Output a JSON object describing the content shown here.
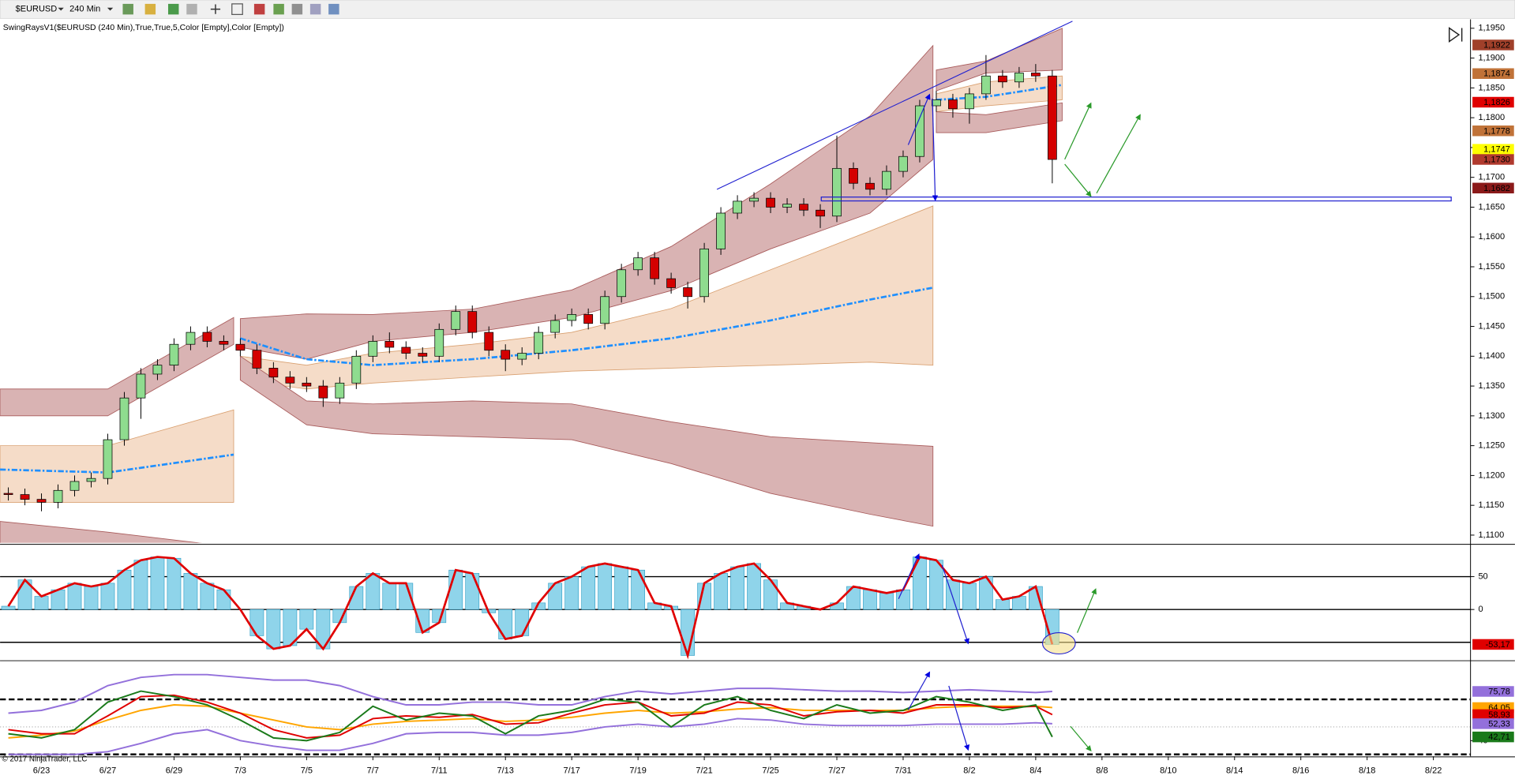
{
  "toolbar": {
    "instrument": "$EURUSD",
    "interval": "240 Min"
  },
  "copyright": "© 2017 NinjaTrader, LLC",
  "chart_data": [
    {
      "type": "candlestick",
      "title": "SwingRaysV1($EURUSD (240 Min),True,True,5,Color [Empty],Color [Empty])",
      "xlim": [
        -1.25,
        43.12
      ],
      "xticks": [
        {
          "value": 0,
          "label": "6/23"
        },
        {
          "value": 2,
          "label": "6/27"
        },
        {
          "value": 4,
          "label": "6/29"
        },
        {
          "value": 6,
          "label": "7/3"
        },
        {
          "value": 8,
          "label": "7/5"
        },
        {
          "value": 10,
          "label": "7/7"
        },
        {
          "value": 12,
          "label": "7/11"
        },
        {
          "value": 14,
          "label": "7/13"
        },
        {
          "value": 16,
          "label": "7/17"
        },
        {
          "value": 18,
          "label": "7/19"
        },
        {
          "value": 20,
          "label": "7/21"
        },
        {
          "value": 22,
          "label": "7/25"
        },
        {
          "value": 24,
          "label": "7/27"
        },
        {
          "value": 26,
          "label": "7/31"
        },
        {
          "value": 28,
          "label": "8/2"
        },
        {
          "value": 30,
          "label": "8/4"
        },
        {
          "value": 32,
          "label": "8/8"
        },
        {
          "value": 34,
          "label": "8/10"
        },
        {
          "value": 36,
          "label": "8/14"
        },
        {
          "value": 38,
          "label": "8/16"
        },
        {
          "value": 40,
          "label": "8/18"
        },
        {
          "value": 42,
          "label": "8/22"
        }
      ],
      "ylim": [
        1.1087,
        1.1965
      ],
      "yticks": [
        {
          "value": 1.195,
          "label": "1,1950"
        },
        {
          "value": 1.19,
          "label": "1,1900"
        },
        {
          "value": 1.185,
          "label": "1,1850"
        },
        {
          "value": 1.18,
          "label": "1,1800"
        },
        {
          "value": 1.175,
          "label": "1,1750"
        },
        {
          "value": 1.17,
          "label": "1,1700"
        },
        {
          "value": 1.165,
          "label": "1,1650"
        },
        {
          "value": 1.16,
          "label": "1,1600"
        },
        {
          "value": 1.155,
          "label": "1,1550"
        },
        {
          "value": 1.15,
          "label": "1,1500"
        },
        {
          "value": 1.145,
          "label": "1,1450"
        },
        {
          "value": 1.14,
          "label": "1,1400"
        },
        {
          "value": 1.135,
          "label": "1,1350"
        },
        {
          "value": 1.13,
          "label": "1,1300"
        },
        {
          "value": 1.125,
          "label": "1,1250"
        },
        {
          "value": 1.12,
          "label": "1,1200"
        },
        {
          "value": 1.115,
          "label": "1,1150"
        },
        {
          "value": 1.11,
          "label": "1,1100"
        }
      ],
      "up_color": "#8fdc8f",
      "down_color": "#d40000",
      "x": [
        -1,
        -0.5,
        0,
        0.5,
        1,
        1.5,
        2,
        2.5,
        3,
        3.5,
        4,
        4.5,
        5,
        5.5,
        6,
        6.5,
        7,
        7.5,
        8,
        8.5,
        9,
        9.5,
        10,
        10.5,
        11,
        11.5,
        12,
        12.5,
        13,
        13.5,
        14,
        14.5,
        15,
        15.5,
        16,
        16.5,
        17,
        17.5,
        18,
        18.5,
        19,
        19.5,
        20,
        20.5,
        21,
        21.5,
        22,
        22.5,
        23,
        23.5,
        24,
        24.5,
        25,
        25.5,
        26,
        26.5,
        27,
        27.5,
        28,
        28.5,
        29,
        29.5,
        30,
        30.5
      ],
      "open": [
        1.117,
        1.1168,
        1.116,
        1.1155,
        1.1175,
        1.119,
        1.1195,
        1.126,
        1.133,
        1.137,
        1.1385,
        1.142,
        1.144,
        1.1425,
        1.142,
        1.141,
        1.138,
        1.1365,
        1.1355,
        1.135,
        1.133,
        1.1355,
        1.14,
        1.1425,
        1.1415,
        1.1405,
        1.14,
        1.1445,
        1.1475,
        1.144,
        1.141,
        1.1395,
        1.1405,
        1.144,
        1.146,
        1.147,
        1.1455,
        1.15,
        1.1545,
        1.1565,
        1.153,
        1.1515,
        1.15,
        1.158,
        1.164,
        1.166,
        1.1665,
        1.165,
        1.1655,
        1.1645,
        1.1635,
        1.1715,
        1.169,
        1.168,
        1.171,
        1.1735,
        1.182,
        1.183,
        1.1815,
        1.184,
        1.187,
        1.186,
        1.1875,
        1.187
      ],
      "high": [
        1.118,
        1.1178,
        1.117,
        1.1185,
        1.12,
        1.1205,
        1.127,
        1.134,
        1.138,
        1.1395,
        1.143,
        1.145,
        1.145,
        1.1435,
        1.143,
        1.142,
        1.139,
        1.1375,
        1.1365,
        1.136,
        1.1365,
        1.141,
        1.1435,
        1.144,
        1.1425,
        1.1415,
        1.1455,
        1.1485,
        1.1485,
        1.145,
        1.142,
        1.1415,
        1.145,
        1.147,
        1.148,
        1.148,
        1.151,
        1.1555,
        1.1575,
        1.1575,
        1.154,
        1.1525,
        1.159,
        1.165,
        1.167,
        1.1675,
        1.1675,
        1.1665,
        1.1665,
        1.1655,
        1.177,
        1.1725,
        1.17,
        1.172,
        1.1745,
        1.183,
        1.1845,
        1.184,
        1.185,
        1.1905,
        1.188,
        1.1885,
        1.189,
        1.188
      ],
      "low": [
        1.1158,
        1.115,
        1.114,
        1.1145,
        1.1165,
        1.118,
        1.1185,
        1.125,
        1.1295,
        1.136,
        1.1375,
        1.141,
        1.1415,
        1.141,
        1.14,
        1.137,
        1.1355,
        1.1345,
        1.134,
        1.1315,
        1.132,
        1.1345,
        1.139,
        1.1405,
        1.1395,
        1.139,
        1.139,
        1.1435,
        1.143,
        1.14,
        1.1375,
        1.1385,
        1.1395,
        1.143,
        1.145,
        1.1445,
        1.1445,
        1.149,
        1.1535,
        1.152,
        1.1505,
        1.148,
        1.149,
        1.157,
        1.163,
        1.165,
        1.164,
        1.164,
        1.1635,
        1.1615,
        1.1625,
        1.168,
        1.167,
        1.167,
        1.17,
        1.1725,
        1.181,
        1.18,
        1.179,
        1.183,
        1.185,
        1.185,
        1.186,
        1.169
      ],
      "close": [
        1.1168,
        1.116,
        1.1155,
        1.1175,
        1.119,
        1.1195,
        1.126,
        1.133,
        1.137,
        1.1385,
        1.142,
        1.144,
        1.1425,
        1.142,
        1.141,
        1.138,
        1.1365,
        1.1355,
        1.135,
        1.133,
        1.1355,
        1.14,
        1.1425,
        1.1415,
        1.1405,
        1.14,
        1.1445,
        1.1475,
        1.144,
        1.141,
        1.1395,
        1.1405,
        1.144,
        1.146,
        1.147,
        1.1455,
        1.15,
        1.1545,
        1.1565,
        1.153,
        1.1515,
        1.15,
        1.158,
        1.164,
        1.166,
        1.1665,
        1.165,
        1.1655,
        1.1645,
        1.1635,
        1.1715,
        1.169,
        1.168,
        1.171,
        1.1735,
        1.182,
        1.183,
        1.1815,
        1.184,
        1.187,
        1.186,
        1.1875,
        1.187,
        1.173
      ],
      "band_x": [
        -1.25,
        2,
        5.8,
        null,
        6.0,
        8,
        10,
        13,
        16,
        19,
        22,
        25,
        26.9,
        null,
        27,
        28.5,
        30.8
      ],
      "bands": [
        {
          "color": "#d9b3b3",
          "edge": "#a85a5a",
          "upper": [
            1.1345,
            1.1345,
            1.1465,
            null,
            1.1463,
            1.1471,
            1.147,
            1.1479,
            1.1511,
            1.1584,
            1.1689,
            1.1803,
            1.1921,
            null,
            1.188,
            1.1895,
            1.195
          ],
          "lower": [
            1.13,
            1.13,
            1.142,
            null,
            1.1415,
            1.1395,
            1.1425,
            1.144,
            1.1465,
            1.151,
            1.158,
            1.164,
            1.173,
            null,
            1.1845,
            1.1875,
            1.188
          ]
        },
        {
          "color": "#f5dcc8",
          "edge": "#d9a070",
          "upper": [
            1.125,
            1.125,
            1.131,
            null,
            1.14,
            1.1385,
            1.1405,
            1.142,
            1.144,
            1.148,
            1.1545,
            1.161,
            1.1652,
            null,
            1.184,
            1.186,
            1.187
          ],
          "lower": [
            1.1155,
            1.1155,
            1.1155,
            null,
            1.136,
            1.1345,
            1.1355,
            1.1365,
            1.1375,
            1.138,
            1.1385,
            1.139,
            1.1385,
            null,
            1.181,
            1.182,
            1.183
          ]
        },
        {
          "color": "#d9b3b3",
          "edge": "#a85a5a",
          "upper": [
            1.1123,
            1.1105,
            1.108,
            null,
            1.14,
            1.1325,
            1.132,
            1.1325,
            1.132,
            1.129,
            1.1265,
            1.1255,
            1.1249,
            null,
            1.181,
            1.1805,
            1.1825
          ],
          "lower": [
            1.108,
            1.106,
            1.104,
            null,
            1.136,
            1.1285,
            1.127,
            1.1265,
            1.126,
            1.122,
            1.117,
            1.1135,
            1.1115,
            null,
            1.1775,
            1.1775,
            1.1795
          ]
        }
      ],
      "ma": {
        "color": "#1e8fff",
        "values": [
          1.121,
          1.1205,
          1.1235,
          null,
          1.143,
          1.1395,
          1.1385,
          1.1395,
          1.141,
          1.143,
          1.146,
          1.1495,
          1.1515,
          null,
          1.183,
          1.1835,
          1.1855
        ]
      },
      "markers": [
        {
          "value": 1.1922,
          "label": "1,1922",
          "color": "#a0402a"
        },
        {
          "value": 1.1874,
          "label": "1,1874",
          "color": "#c07238"
        },
        {
          "value": 1.1826,
          "label": "1,1826",
          "color": "#e00000"
        },
        {
          "value": 1.1778,
          "label": "1,1778",
          "color": "#c07238"
        },
        {
          "value": 1.1747,
          "label": "1,1747",
          "color": "#ffff00"
        },
        {
          "value": 1.173,
          "label": "1,1730",
          "color": "#b03a2e"
        },
        {
          "value": 1.1682,
          "label": "1,1682",
          "color": "#8b1a1a"
        }
      ]
    },
    {
      "type": "bar",
      "x": [
        -1,
        -0.5,
        0,
        0.5,
        1,
        1.5,
        2,
        2.5,
        3,
        3.5,
        4,
        4.5,
        5,
        5.5,
        6,
        6.5,
        7,
        7.5,
        8,
        8.5,
        9,
        9.5,
        10,
        10.5,
        11,
        11.5,
        12,
        12.5,
        13,
        13.5,
        14,
        14.5,
        15,
        15.5,
        16,
        16.5,
        17,
        17.5,
        18,
        18.5,
        19,
        19.5,
        20,
        20.5,
        21,
        21.5,
        22,
        22.5,
        23,
        23.5,
        24,
        24.5,
        25,
        25.5,
        26,
        26.5,
        27,
        27.5,
        28,
        28.5,
        29,
        29.5,
        30,
        30.5
      ],
      "values": [
        5,
        45,
        20,
        30,
        40,
        35,
        40,
        60,
        75,
        80,
        78,
        55,
        40,
        30,
        0,
        -40,
        -60,
        -55,
        -30,
        -60,
        -20,
        35,
        55,
        40,
        40,
        -35,
        -20,
        60,
        55,
        -5,
        -45,
        -40,
        10,
        40,
        50,
        65,
        70,
        65,
        60,
        10,
        5,
        -70,
        40,
        55,
        65,
        70,
        45,
        10,
        5,
        0,
        10,
        35,
        30,
        25,
        30,
        80,
        75,
        45,
        40,
        50,
        15,
        20,
        35,
        -53.17
      ],
      "color": "#8fd4ea",
      "line_color": "#e00000",
      "ylim": [
        -76.5,
        97
      ],
      "yticks": [
        50,
        0
      ],
      "hlines": [
        50,
        0,
        -50
      ],
      "markers": [
        {
          "value": -53.17,
          "label": "-53,17",
          "color": "#e00000"
        }
      ]
    },
    {
      "type": "line",
      "x": [
        -1,
        0,
        1,
        2,
        3,
        4,
        5,
        6,
        7,
        8,
        9,
        10,
        11,
        12,
        13,
        14,
        15,
        16,
        17,
        18,
        19,
        20,
        21,
        22,
        23,
        24,
        25,
        26,
        27,
        28,
        29,
        30,
        30.5
      ],
      "series": [
        {
          "color": "#9370db",
          "values": [
            60,
            62,
            68,
            80,
            86,
            88,
            88,
            86,
            84,
            84,
            80,
            72,
            66,
            66,
            68,
            68,
            66,
            66,
            72,
            76,
            74,
            76,
            78,
            78,
            77,
            76,
            76,
            75,
            76,
            77,
            76,
            75,
            75.78
          ]
        },
        {
          "color": "#9370db",
          "values": [
            30,
            30,
            30,
            32,
            38,
            45,
            48,
            40,
            36,
            33,
            33,
            38,
            45,
            46,
            46,
            44,
            44,
            46,
            50,
            52,
            50,
            52,
            56,
            55,
            52,
            51,
            51,
            51,
            52,
            52,
            52,
            53,
            52.33
          ]
        },
        {
          "color": "#ffa500",
          "values": [
            42,
            44,
            47,
            55,
            62,
            66,
            65,
            60,
            55,
            50,
            48,
            52,
            54,
            55,
            56,
            54,
            55,
            57,
            60,
            62,
            60,
            61,
            63,
            64,
            62,
            62,
            62,
            62,
            64,
            65,
            65,
            65,
            64.05
          ]
        },
        {
          "color": "#e00000",
          "values": [
            48,
            45,
            45,
            58,
            72,
            73,
            68,
            60,
            48,
            42,
            44,
            56,
            58,
            57,
            59,
            52,
            53,
            60,
            66,
            68,
            58,
            60,
            68,
            66,
            58,
            61,
            62,
            60,
            66,
            66,
            64,
            65,
            58.93
          ]
        },
        {
          "color": "#1a7a1a",
          "values": [
            45,
            42,
            48,
            68,
            76,
            72,
            66,
            55,
            42,
            40,
            46,
            65,
            55,
            60,
            58,
            45,
            58,
            62,
            70,
            68,
            50,
            66,
            72,
            62,
            56,
            66,
            60,
            62,
            72,
            68,
            62,
            66,
            42.71
          ]
        }
      ],
      "ylim": [
        28.6,
        97.4
      ],
      "yticks": [
        40
      ],
      "hlines_dashed": [
        70,
        30
      ],
      "hlines_dotted": [
        50
      ],
      "markers": [
        {
          "value": 75.78,
          "label": "75,78",
          "color": "#9370db"
        },
        {
          "value": 64.05,
          "label": "64,05",
          "color": "#ffa500"
        },
        {
          "value": 58.93,
          "label": "58,93",
          "color": "#e00000"
        },
        {
          "value": 52.33,
          "label": "52,33",
          "color": "#9370db"
        },
        {
          "value": 42.71,
          "label": "42,71",
          "color": "#1a7a1a"
        }
      ]
    }
  ]
}
